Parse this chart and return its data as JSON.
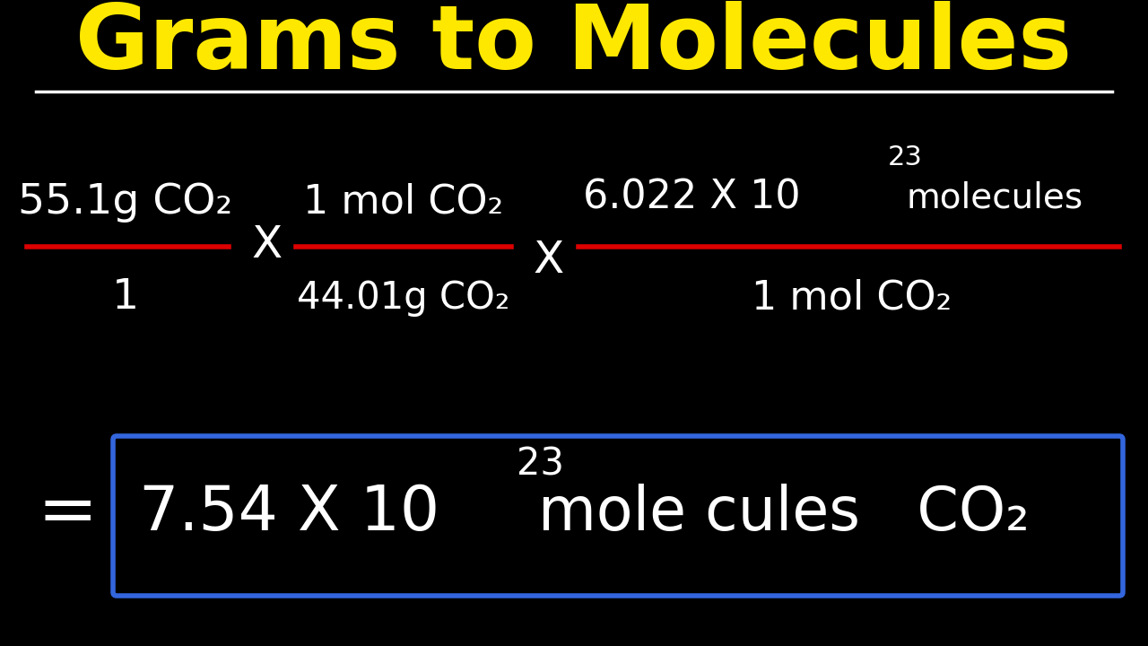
{
  "background_color": "#000000",
  "title": "Grams to Molecules",
  "title_color": "#FFE800",
  "title_fontsize": 72,
  "white_text_color": "#FFFFFF",
  "red_line_color": "#DD0000",
  "blue_box_color": "#3366DD",
  "fraction1_num": "55.1g CO₂",
  "fraction1_den": "1",
  "fraction2_num": "1 mol CO₂",
  "fraction2_den": "44.01g CO₂",
  "fraction3_num_base": "6.022 X 10",
  "fraction3_num_exp": "23",
  "fraction3_num_end": "molecules",
  "fraction3_den": "1 mol CO₂",
  "result_base": "7.54 X 10",
  "result_exp": "23",
  "result_end": "mole cules   CO₂",
  "equals_sign": "="
}
